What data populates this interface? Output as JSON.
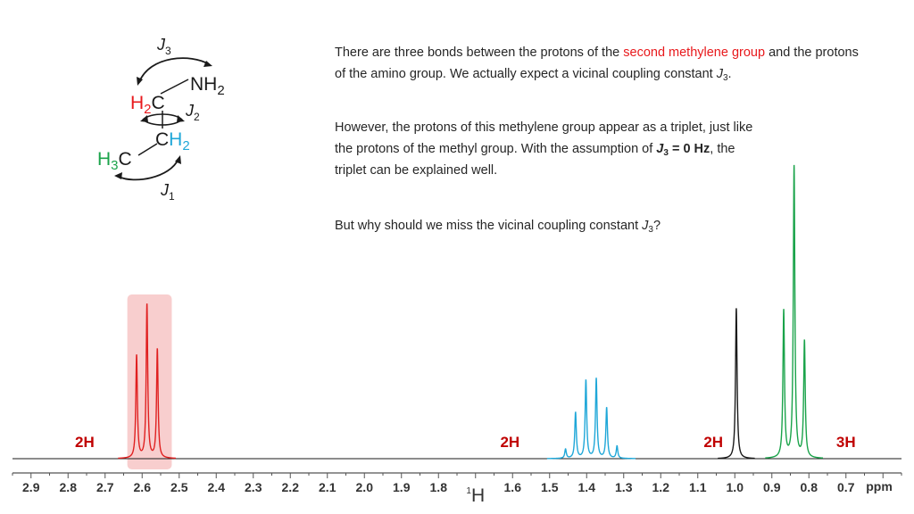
{
  "molecule": {
    "j3": "J",
    "j3_sub": "3",
    "j2": "J",
    "j2_sub": "2",
    "j1": "J",
    "j1_sub": "1",
    "nh2": "NH",
    "nh2_sub": "2",
    "h2c_h": "H",
    "h2c_sub": "2",
    "h2c_c": "C",
    "ch2_c": "C",
    "ch2_h": "H",
    "ch2_sub": "2",
    "h3c_h": "H",
    "h3c_sub": "3",
    "h3c_c": "C",
    "colors": {
      "methylene2": "#e8191c",
      "methylene1": "#1fa7d8",
      "methyl": "#1aa34a",
      "amino": "#1a1a1a"
    }
  },
  "text": {
    "p1_a": "There are three bonds between the protons of the ",
    "p1_red": "second methylene group",
    "p1_b": " and the protons of the amino group. We actually expect a vicinal coupling constant ",
    "p1_j": "J",
    "p1_sub": "3",
    "p1_end": ".",
    "p2_a": "However, the protons of this methylene group appear as a triplet, just like the protons of the methyl group. With the assumption of ",
    "p2_bold_j": "J",
    "p2_bold_sub": "3",
    "p2_bold_rest": " = 0 Hz",
    "p2_b": ", the triplet can be explained well.",
    "p3_a": "But why should we miss the vicinal coupling constant ",
    "p3_j": "J",
    "p3_sub": "3",
    "p3_end": "?"
  },
  "chart_data": {
    "type": "line",
    "xlabel": "1H",
    "xunit": "ppm",
    "xlim": [
      2.95,
      0.55
    ],
    "ticks": [
      "2.9",
      "2.8",
      "2.7",
      "2.6",
      "2.5",
      "2.4",
      "2.3",
      "2.2",
      "2.1",
      "2.0",
      "1.9",
      "1.8",
      "1.6",
      "1.5",
      "1.4",
      "1.3",
      "1.2",
      "1.1",
      "1.0",
      "0.9",
      "0.8",
      "0.7"
    ],
    "highlight": {
      "from": 2.64,
      "to": 2.52,
      "color": "#f7c6c6"
    },
    "series": [
      {
        "color": "#e02020",
        "peaks": [
          {
            "x": 2.615,
            "y": 0.67
          },
          {
            "x": 2.587,
            "y": 1.0
          },
          {
            "x": 2.559,
            "y": 0.71
          }
        ]
      },
      {
        "color": "#1fa7d8",
        "peaks": [
          {
            "x": 1.457,
            "y": 0.06
          },
          {
            "x": 1.43,
            "y": 0.3
          },
          {
            "x": 1.402,
            "y": 0.51
          },
          {
            "x": 1.374,
            "y": 0.52
          },
          {
            "x": 1.346,
            "y": 0.33
          },
          {
            "x": 1.318,
            "y": 0.08
          }
        ]
      },
      {
        "color": "#1a1a1a",
        "peaks": [
          {
            "x": 0.996,
            "y": 0.98
          }
        ]
      },
      {
        "color": "#1aa34a",
        "peaks": [
          {
            "x": 0.868,
            "y": 0.96
          },
          {
            "x": 0.84,
            "y": 1.9
          },
          {
            "x": 0.812,
            "y": 0.76
          }
        ]
      }
    ],
    "integrals": [
      {
        "label": "2H",
        "x": 2.755,
        "color": "#c00000"
      },
      {
        "label": "2H",
        "x": 1.607,
        "color": "#c00000"
      },
      {
        "label": "2H",
        "x": 1.058,
        "color": "#c00000"
      },
      {
        "label": "3H",
        "x": 0.7,
        "color": "#c00000"
      }
    ]
  }
}
